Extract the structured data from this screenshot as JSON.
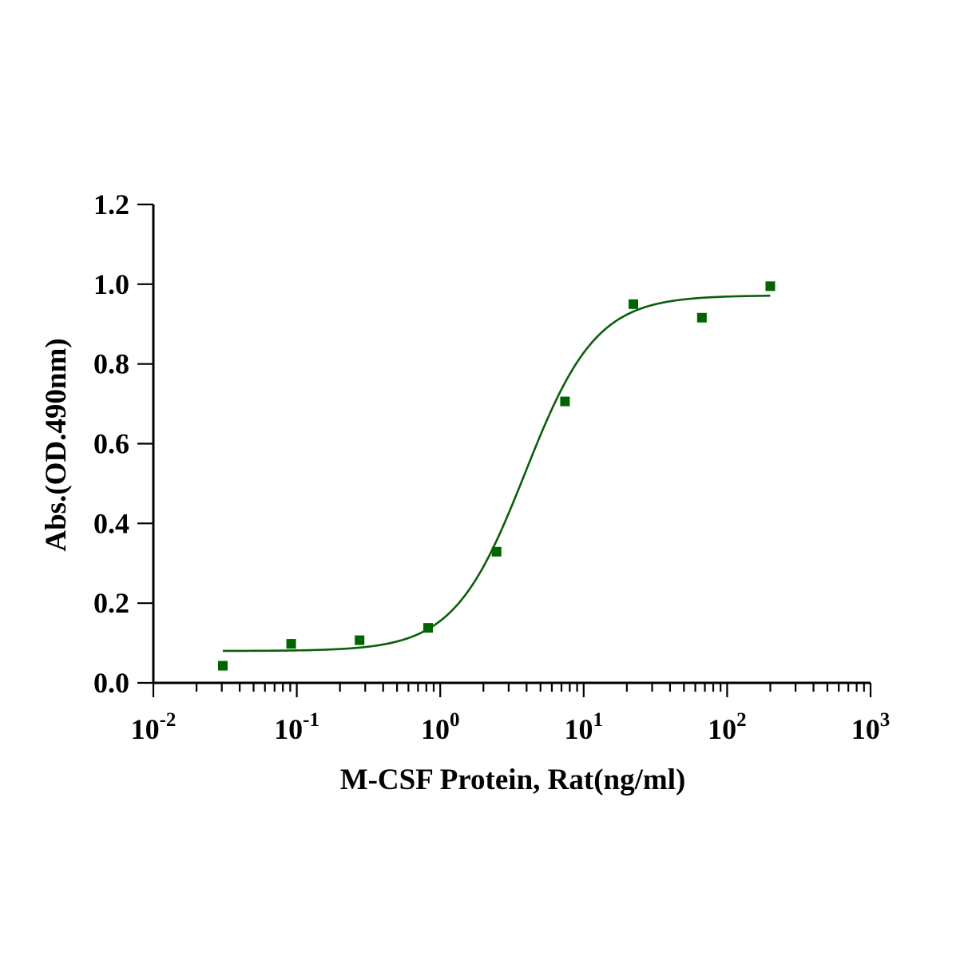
{
  "chart_data": {
    "type": "scatter",
    "title": "",
    "xlabel": "M-CSF Protein, Rat(ng/ml)",
    "ylabel": "Abs.(OD.490nm)",
    "x_scale": "log10",
    "xlim": [
      0.01,
      1000
    ],
    "ylim": [
      0,
      1.2
    ],
    "x_ticks": [
      {
        "base": "10",
        "exp": "-2"
      },
      {
        "base": "10",
        "exp": "-1"
      },
      {
        "base": "10",
        "exp": "0"
      },
      {
        "base": "10",
        "exp": "1"
      },
      {
        "base": "10",
        "exp": "2"
      },
      {
        "base": "10",
        "exp": "3"
      }
    ],
    "y_ticks": [
      "0.0",
      "0.2",
      "0.4",
      "0.6",
      "0.8",
      "1.0",
      "1.2"
    ],
    "grid": false,
    "legend": "none",
    "marker_color": "#006400",
    "curve_color": "#0b5e0b",
    "series": [
      {
        "marker": "square",
        "points": [
          {
            "x": 0.0305,
            "y": 0.043
          },
          {
            "x": 0.0914,
            "y": 0.098
          },
          {
            "x": 0.274,
            "y": 0.107
          },
          {
            "x": 0.823,
            "y": 0.138
          },
          {
            "x": 2.47,
            "y": 0.329
          },
          {
            "x": 7.41,
            "y": 0.706
          },
          {
            "x": 22.2,
            "y": 0.95
          },
          {
            "x": 66.7,
            "y": 0.916
          },
          {
            "x": 200,
            "y": 0.995
          }
        ]
      }
    ],
    "fit": {
      "model": "4PL",
      "bottom": 0.08,
      "top": 0.972,
      "ec50": 3.9,
      "hill": 1.75,
      "x_range": [
        0.0305,
        200
      ]
    }
  }
}
